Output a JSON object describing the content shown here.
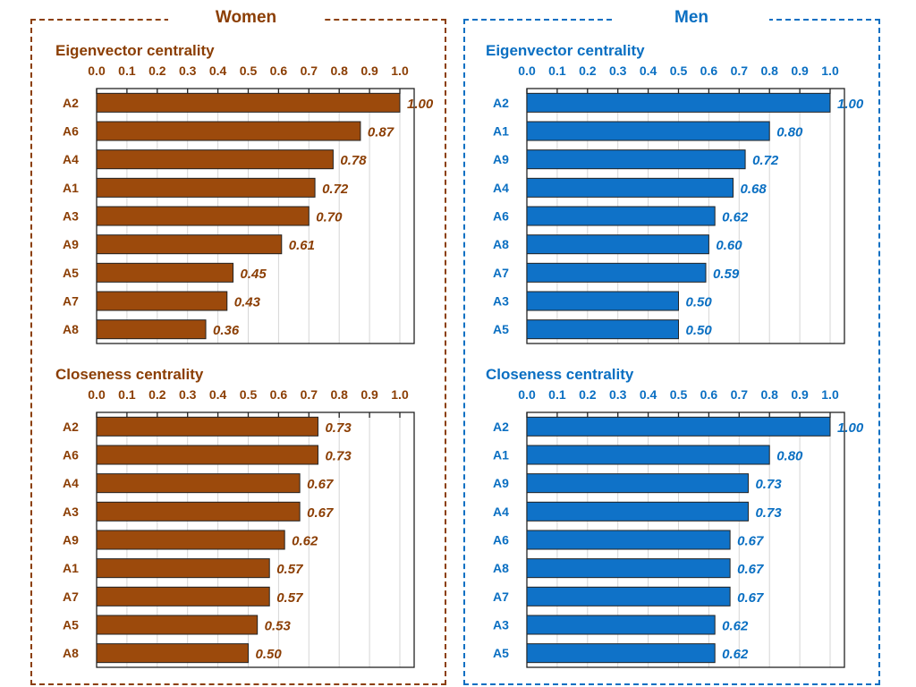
{
  "groups": [
    {
      "title": "Women",
      "color": "#8B3E04",
      "fill": "#9C4A0C"
    },
    {
      "title": "Men",
      "color": "#0A6FC2",
      "fill": "#0F72C8"
    }
  ],
  "chart_data": [
    {
      "type": "bar",
      "group": "Women",
      "title": "Eigenvector centrality",
      "categories": [
        "A2",
        "A6",
        "A4",
        "A1",
        "A3",
        "A9",
        "A5",
        "A7",
        "A8"
      ],
      "values": [
        1.0,
        0.87,
        0.78,
        0.72,
        0.7,
        0.61,
        0.45,
        0.43,
        0.36
      ],
      "value_labels": [
        "1.00",
        "0.87",
        "0.78",
        "0.72",
        "0.70",
        "0.61",
        "0.45",
        "0.43",
        "0.36"
      ],
      "ticks": [
        "0.0",
        "0.1",
        "0.2",
        "0.3",
        "0.4",
        "0.5",
        "0.6",
        "0.7",
        "0.8",
        "0.9",
        "1.0"
      ],
      "xlim": [
        0,
        1.05
      ],
      "orientation": "horizontal",
      "axis_position": "top",
      "grid": true
    },
    {
      "type": "bar",
      "group": "Women",
      "title": "Closeness centrality",
      "categories": [
        "A2",
        "A6",
        "A4",
        "A3",
        "A9",
        "A1",
        "A7",
        "A5",
        "A8"
      ],
      "values": [
        0.73,
        0.73,
        0.67,
        0.67,
        0.62,
        0.57,
        0.57,
        0.53,
        0.5
      ],
      "value_labels": [
        "0.73",
        "0.73",
        "0.67",
        "0.67",
        "0.62",
        "0.57",
        "0.57",
        "0.53",
        "0.50"
      ],
      "ticks": [
        "0.0",
        "0.1",
        "0.2",
        "0.3",
        "0.4",
        "0.5",
        "0.6",
        "0.7",
        "0.8",
        "0.9",
        "1.0"
      ],
      "xlim": [
        0,
        1.05
      ],
      "orientation": "horizontal",
      "axis_position": "top",
      "grid": true
    },
    {
      "type": "bar",
      "group": "Men",
      "title": "Eigenvector centrality",
      "categories": [
        "A2",
        "A1",
        "A9",
        "A4",
        "A6",
        "A8",
        "A7",
        "A3",
        "A5"
      ],
      "values": [
        1.0,
        0.8,
        0.72,
        0.68,
        0.62,
        0.6,
        0.59,
        0.5,
        0.5
      ],
      "value_labels": [
        "1.00",
        "0.80",
        "0.72",
        "0.68",
        "0.62",
        "0.60",
        "0.59",
        "0.50",
        "0.50"
      ],
      "ticks": [
        "0.0",
        "0.1",
        "0.2",
        "0.3",
        "0.4",
        "0.5",
        "0.6",
        "0.7",
        "0.8",
        "0.9",
        "1.0"
      ],
      "xlim": [
        0,
        1.05
      ],
      "orientation": "horizontal",
      "axis_position": "top",
      "grid": true
    },
    {
      "type": "bar",
      "group": "Men",
      "title": "Closeness centrality",
      "categories": [
        "A2",
        "A1",
        "A9",
        "A4",
        "A6",
        "A8",
        "A7",
        "A3",
        "A5"
      ],
      "values": [
        1.0,
        0.8,
        0.73,
        0.73,
        0.67,
        0.67,
        0.67,
        0.62,
        0.62
      ],
      "value_labels": [
        "1.00",
        "0.80",
        "0.73",
        "0.73",
        "0.67",
        "0.67",
        "0.67",
        "0.62",
        "0.62"
      ],
      "ticks": [
        "0.0",
        "0.1",
        "0.2",
        "0.3",
        "0.4",
        "0.5",
        "0.6",
        "0.7",
        "0.8",
        "0.9",
        "1.0"
      ],
      "xlim": [
        0,
        1.05
      ],
      "orientation": "horizontal",
      "axis_position": "top",
      "grid": true
    }
  ]
}
